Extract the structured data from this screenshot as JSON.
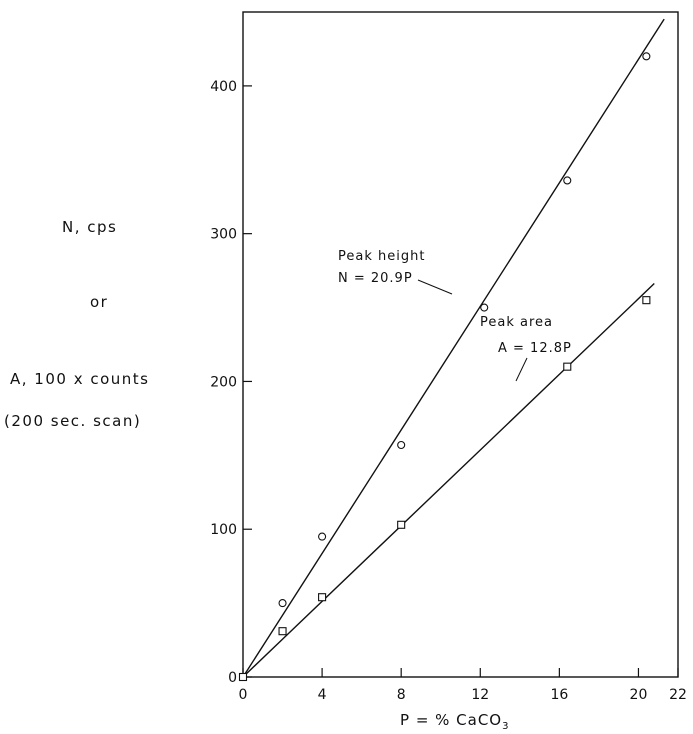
{
  "chart_data": {
    "type": "scatter",
    "xlabel_main": "P = % CaCO",
    "xlabel_sub": "3",
    "ylabel_lines": [
      "N, cps",
      "or",
      "A, 100 x counts",
      "(200 sec. scan)"
    ],
    "xlim": [
      0,
      22
    ],
    "ylim": [
      0,
      450
    ],
    "xticks": [
      0,
      4,
      8,
      12,
      16,
      20,
      22
    ],
    "yticks": [
      0,
      100,
      200,
      300,
      400
    ],
    "grid": false,
    "series": [
      {
        "name": "Peak height",
        "marker": "circle",
        "points": [
          [
            0,
            0
          ],
          [
            2,
            50
          ],
          [
            4,
            95
          ],
          [
            8,
            157
          ],
          [
            12.2,
            250
          ],
          [
            16.4,
            336
          ],
          [
            20.4,
            420
          ]
        ],
        "fit": {
          "slope": 20.9,
          "x_range": [
            0,
            21.3
          ]
        }
      },
      {
        "name": "Peak area",
        "marker": "square",
        "points": [
          [
            0,
            0
          ],
          [
            2,
            31
          ],
          [
            4,
            54
          ],
          [
            8,
            103
          ],
          [
            16.4,
            210
          ],
          [
            20.4,
            255
          ]
        ],
        "fit": {
          "slope": 12.8,
          "x_range": [
            0,
            20.8
          ]
        }
      }
    ],
    "annotations": [
      {
        "lines": [
          "Peak height",
          "N = 20.9P"
        ],
        "series": "Peak height"
      },
      {
        "lines": [
          "Peak area",
          "A = 12.8P"
        ],
        "series": "Peak area"
      }
    ]
  }
}
